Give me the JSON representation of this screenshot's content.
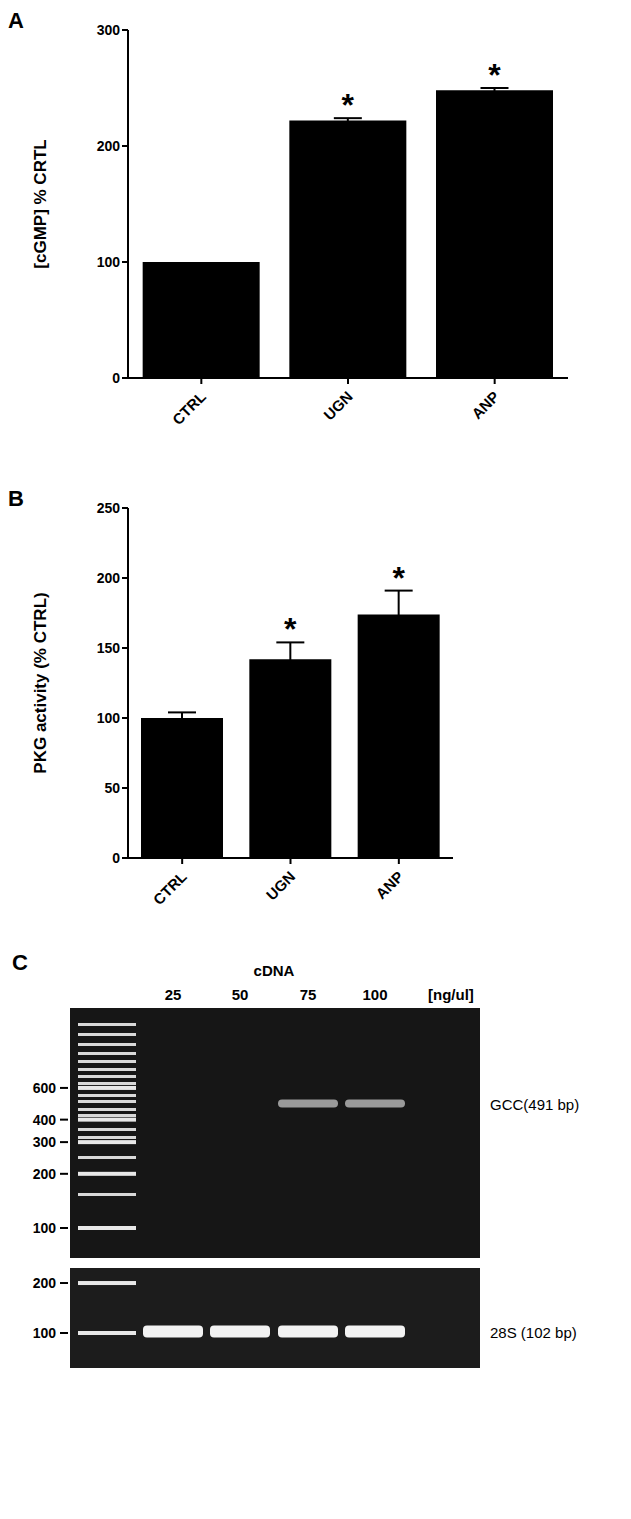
{
  "chart_data": [
    {
      "type": "bar",
      "title": "A",
      "categories": [
        "CTRL",
        "UGN",
        "ANP"
      ],
      "values": [
        100,
        222,
        248
      ],
      "errors": [
        0,
        2,
        2
      ],
      "color": "#000000",
      "ylabel": "[cGMP] % CRTL",
      "ylim": [
        0,
        300
      ],
      "yticks": [
        0,
        100,
        200,
        300
      ],
      "annotations": [
        null,
        "*",
        "*"
      ]
    },
    {
      "type": "bar",
      "title": "B",
      "categories": [
        "CTRL",
        "UGN",
        "ANP"
      ],
      "values": [
        100,
        142,
        174
      ],
      "errors": [
        4,
        12,
        17
      ],
      "color": "#000000",
      "ylabel": "PKG activity (% CTRL)",
      "ylim": [
        0,
        250
      ],
      "yticks": [
        0,
        50,
        100,
        150,
        200,
        250
      ],
      "annotations": [
        null,
        "*",
        "*"
      ]
    }
  ],
  "gel": {
    "label": "C",
    "header": "cDNA",
    "lanes": [
      "25",
      "50",
      "75",
      "100"
    ],
    "unit": "[ng/ul]",
    "panels": [
      {
        "ladder": [
          600,
          400,
          300,
          200,
          100
        ],
        "band": {
          "label": "GCC(491 bp)",
          "size": 491,
          "lanes": [
            "75",
            "100"
          ]
        }
      },
      {
        "ladder": [
          200,
          100
        ],
        "band": {
          "label": "28S (102 bp)",
          "size": 102,
          "lanes": [
            "25",
            "50",
            "75",
            "100"
          ]
        }
      }
    ]
  }
}
